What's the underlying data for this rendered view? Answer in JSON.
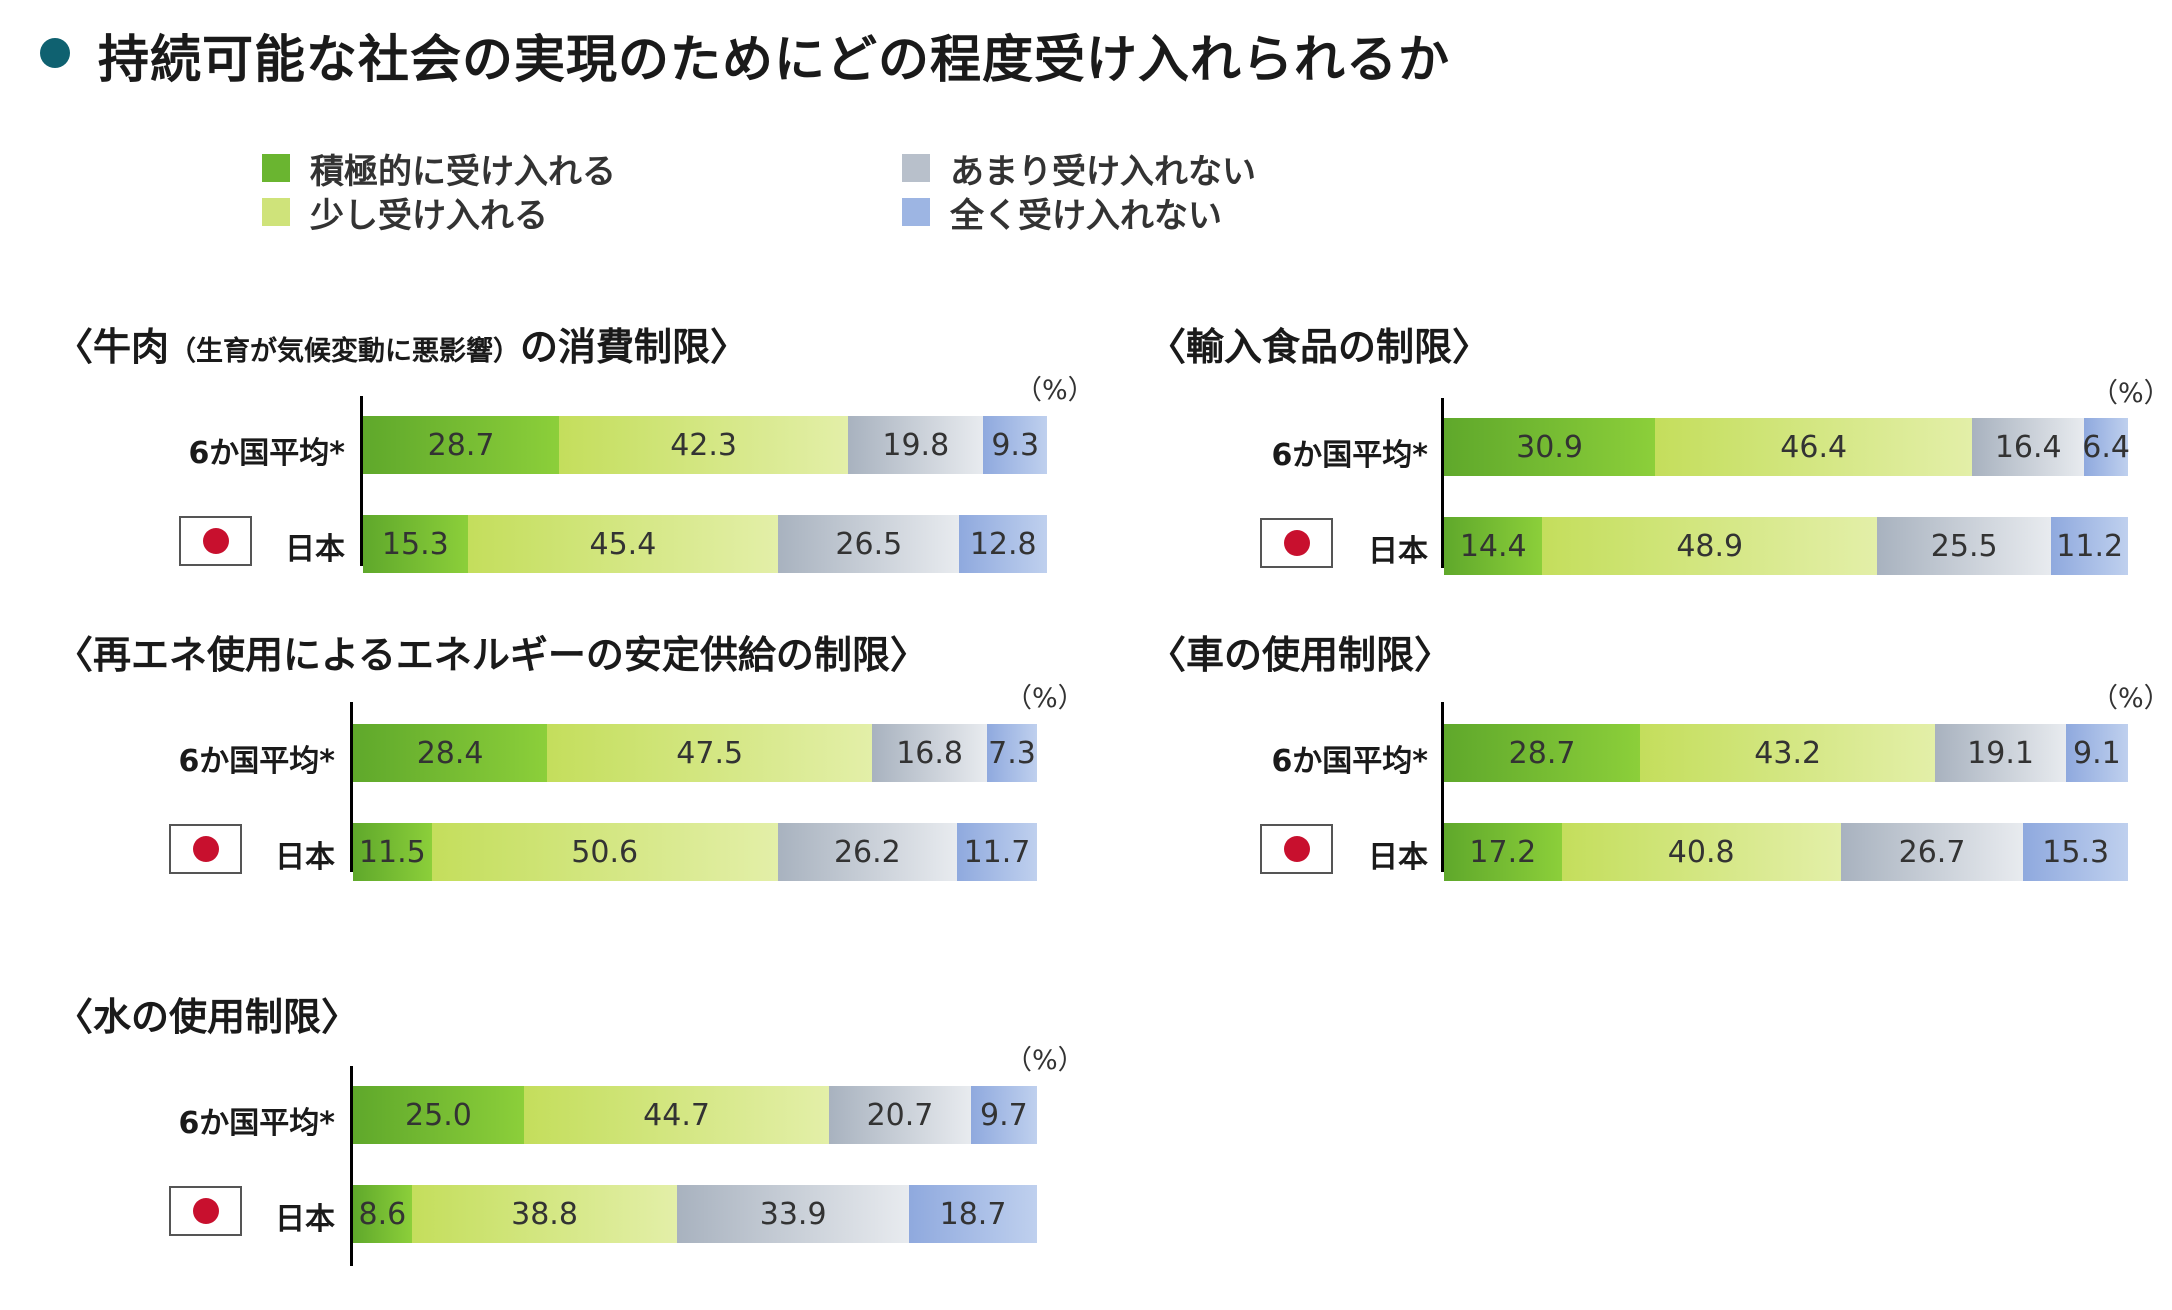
{
  "title": "持続可能な社会の実現のためにどの程度受け入れられるか",
  "colors": {
    "title_dot": "#0f6170",
    "green": "#6ab530",
    "light_green": "#cfe37a",
    "gray": "#b8c0cb",
    "blue": "#9db5e3",
    "flag_red": "#c8102e"
  },
  "legend": [
    {
      "label": "積極的に受け入れる",
      "color": "#6ab530"
    },
    {
      "label": "少し受け入れる",
      "color": "#cfe37a"
    },
    {
      "label": "あまり受け入れない",
      "color": "#b8c0cb"
    },
    {
      "label": "全く受け入れない",
      "color": "#9db5e3"
    }
  ],
  "unit": "（%）",
  "chart_data": [
    {
      "type": "bar",
      "stacked": true,
      "orientation": "horizontal",
      "title": "〈牛肉",
      "title_sub": "（生育が気候変動に悪影響）",
      "title_end": "の消費制限〉",
      "categories": [
        "6か国平均*",
        "日本"
      ],
      "series": [
        {
          "name": "積極的に受け入れる",
          "values": [
            28.7,
            15.3
          ]
        },
        {
          "name": "少し受け入れる",
          "values": [
            42.3,
            45.4
          ]
        },
        {
          "name": "あまり受け入れない",
          "values": [
            19.8,
            26.5
          ]
        },
        {
          "name": "全く受け入れない",
          "values": [
            9.3,
            12.8
          ]
        }
      ]
    },
    {
      "type": "bar",
      "stacked": true,
      "orientation": "horizontal",
      "title": "〈輸入食品の制限〉",
      "categories": [
        "6か国平均*",
        "日本"
      ],
      "series": [
        {
          "name": "積極的に受け入れる",
          "values": [
            30.9,
            14.4
          ]
        },
        {
          "name": "少し受け入れる",
          "values": [
            46.4,
            48.9
          ]
        },
        {
          "name": "あまり受け入れない",
          "values": [
            16.4,
            25.5
          ]
        },
        {
          "name": "全く受け入れない",
          "values": [
            6.4,
            11.2
          ]
        }
      ]
    },
    {
      "type": "bar",
      "stacked": true,
      "orientation": "horizontal",
      "title": "〈再エネ使用によるエネルギーの安定供給の制限〉",
      "categories": [
        "6か国平均*",
        "日本"
      ],
      "series": [
        {
          "name": "積極的に受け入れる",
          "values": [
            28.4,
            11.5
          ]
        },
        {
          "name": "少し受け入れる",
          "values": [
            47.5,
            50.6
          ]
        },
        {
          "name": "あまり受け入れない",
          "values": [
            16.8,
            26.2
          ]
        },
        {
          "name": "全く受け入れない",
          "values": [
            7.3,
            11.7
          ]
        }
      ]
    },
    {
      "type": "bar",
      "stacked": true,
      "orientation": "horizontal",
      "title": "〈車の使用制限〉",
      "categories": [
        "6か国平均*",
        "日本"
      ],
      "series": [
        {
          "name": "積極的に受け入れる",
          "values": [
            28.7,
            17.2
          ]
        },
        {
          "name": "少し受け入れる",
          "values": [
            43.2,
            40.8
          ]
        },
        {
          "name": "あまり受け入れない",
          "values": [
            19.1,
            26.7
          ]
        },
        {
          "name": "全く受け入れない",
          "values": [
            9.1,
            15.3
          ]
        }
      ]
    },
    {
      "type": "bar",
      "stacked": true,
      "orientation": "horizontal",
      "title": "〈水の使用制限〉",
      "categories": [
        "6か国平均*",
        "日本"
      ],
      "series": [
        {
          "name": "積極的に受け入れる",
          "values": [
            25.0,
            8.6
          ]
        },
        {
          "name": "少し受け入れる",
          "values": [
            44.7,
            38.8
          ]
        },
        {
          "name": "あまり受け入れない",
          "values": [
            20.7,
            33.9
          ]
        },
        {
          "name": "全く受け入れない",
          "values": [
            9.7,
            18.7
          ]
        }
      ]
    }
  ]
}
